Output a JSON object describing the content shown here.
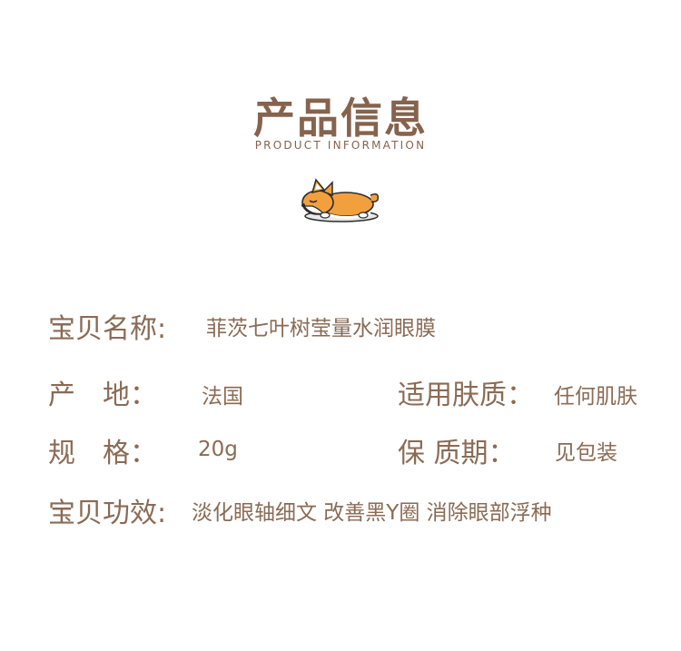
{
  "header": {
    "title": "产品信息",
    "subtitle": "PRODUCT INFORMATION"
  },
  "mascot": {
    "icon": "sleeping-corgi-icon"
  },
  "info": {
    "name_label": "宝贝名称:",
    "name_value": "菲茨七叶树莹量水润眼膜",
    "origin_label": "产　地：",
    "origin_value": "法国",
    "skin_label": "适用肤质：",
    "skin_value": "任何肌肤",
    "spec_label": "规　格：",
    "spec_value": "20g",
    "shelf_label": "保 质期：",
    "shelf_value": "见包装",
    "effect_label": "宝贝功效:",
    "effect_value": "淡化眼轴细文 改善黑Y圈 消除眼部浮种"
  },
  "colors": {
    "text": "#8a6b55",
    "title": "#86634d",
    "corgi_orange": "#f2a03d",
    "corgi_white": "#ffffff",
    "outline": "#2b2b2b"
  }
}
